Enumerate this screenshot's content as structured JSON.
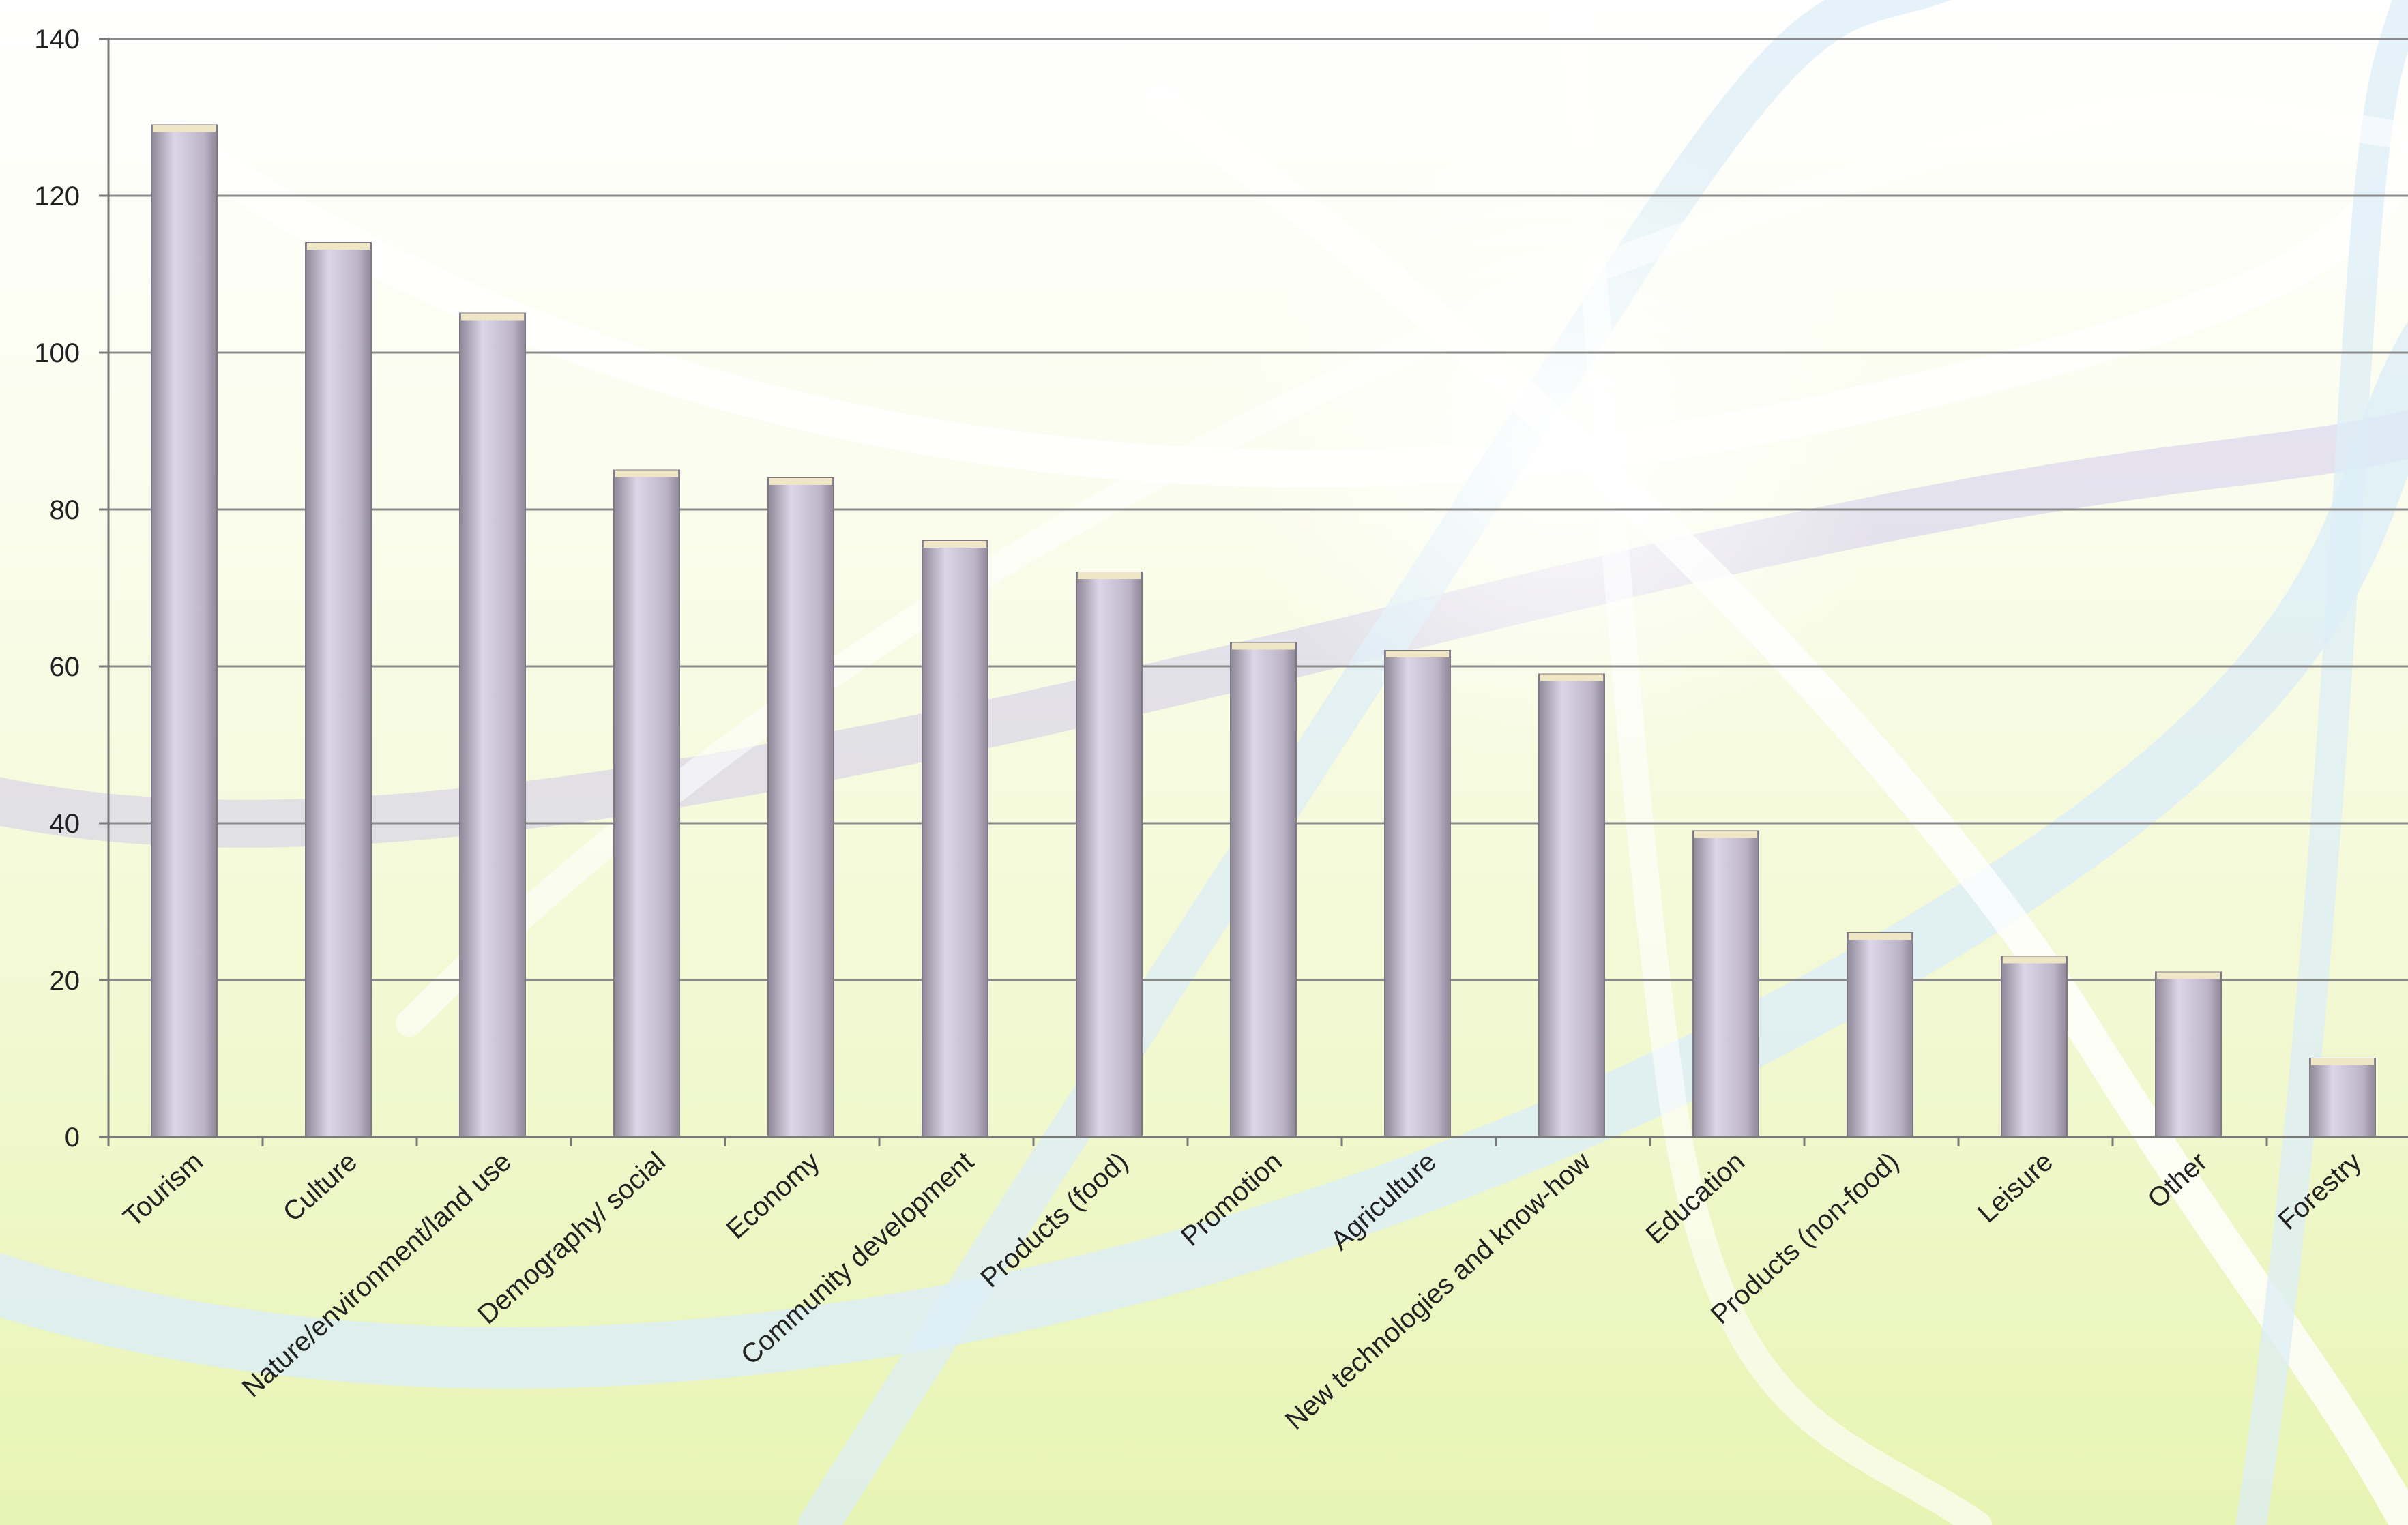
{
  "chart_data": {
    "type": "bar",
    "title": "",
    "xlabel": "",
    "ylabel": "",
    "ylim": [
      0,
      140
    ],
    "yticks": [
      0,
      20,
      40,
      60,
      80,
      100,
      120,
      140
    ],
    "grid": true,
    "legend": "none",
    "categories": [
      "Tourism",
      "Culture",
      "Nature/environment/land use",
      "Demography/ social",
      "Economy",
      "Community development",
      "Products (food)",
      "Promotion",
      "Agriculture",
      "New technologies and know-how",
      "Education",
      "Products (non-food)",
      "Leisure",
      "Other",
      "Forestry"
    ],
    "values": [
      129,
      114,
      105,
      85,
      84,
      76,
      72,
      63,
      62,
      59,
      39,
      26,
      23,
      21,
      10
    ],
    "colors": {
      "bar_light": "#dcd6e8",
      "bar_mid": "#bdb4c8",
      "bar_dark": "#8f8898",
      "bar_top": "#efe6c6",
      "grid": "#8a8a8a",
      "axis": "#7a7a7a",
      "text": "#222222",
      "swirl_white": "#ffffff",
      "swirl_blue": "#dceef7",
      "swirl_purple": "#c9c2ee"
    }
  }
}
